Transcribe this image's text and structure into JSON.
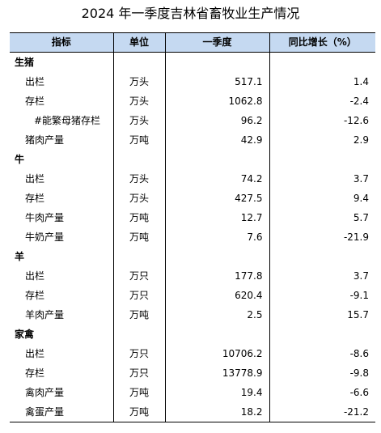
{
  "title": "2024 年一季度吉林省畜牧业生产情况",
  "headers": {
    "indicator": "指标",
    "unit": "单位",
    "q1": "一季度",
    "yoy": "同比增长（%）"
  },
  "rows": [
    {
      "type": "sec",
      "name": "生猪",
      "unit": "",
      "q1": "",
      "yoy": ""
    },
    {
      "type": "item",
      "name": "出栏",
      "unit": "万头",
      "q1": "517.1",
      "yoy": "1.4"
    },
    {
      "type": "item",
      "name": "存栏",
      "unit": "万头",
      "q1": "1062.8",
      "yoy": "-2.4"
    },
    {
      "type": "sub",
      "name": "#能繁母猪存栏",
      "unit": "万头",
      "q1": "96.2",
      "yoy": "-12.6"
    },
    {
      "type": "item",
      "name": "猪肉产量",
      "unit": "万吨",
      "q1": "42.9",
      "yoy": "2.9"
    },
    {
      "type": "sec",
      "name": "牛",
      "unit": "",
      "q1": "",
      "yoy": ""
    },
    {
      "type": "item",
      "name": "出栏",
      "unit": "万头",
      "q1": "74.2",
      "yoy": "3.7"
    },
    {
      "type": "item",
      "name": "存栏",
      "unit": "万头",
      "q1": "427.5",
      "yoy": "9.4"
    },
    {
      "type": "item",
      "name": "牛肉产量",
      "unit": "万吨",
      "q1": "12.7",
      "yoy": "5.7"
    },
    {
      "type": "item",
      "name": "牛奶产量",
      "unit": "万吨",
      "q1": "7.6",
      "yoy": "-21.9"
    },
    {
      "type": "sec",
      "name": "羊",
      "unit": "",
      "q1": "",
      "yoy": ""
    },
    {
      "type": "item",
      "name": "出栏",
      "unit": "万只",
      "q1": "177.8",
      "yoy": "3.7"
    },
    {
      "type": "item",
      "name": "存栏",
      "unit": "万只",
      "q1": "620.4",
      "yoy": "-9.1"
    },
    {
      "type": "item",
      "name": "羊肉产量",
      "unit": "万吨",
      "q1": "2.5",
      "yoy": "15.7"
    },
    {
      "type": "sec",
      "name": "家禽",
      "unit": "",
      "q1": "",
      "yoy": ""
    },
    {
      "type": "item",
      "name": "出栏",
      "unit": "万只",
      "q1": "10706.2",
      "yoy": "-8.6"
    },
    {
      "type": "item",
      "name": "存栏",
      "unit": "万只",
      "q1": "13778.9",
      "yoy": "-9.8"
    },
    {
      "type": "item",
      "name": "禽肉产量",
      "unit": "万吨",
      "q1": "19.4",
      "yoy": "-6.6"
    },
    {
      "type": "item",
      "name": "禽蛋产量",
      "unit": "万吨",
      "q1": "18.2",
      "yoy": "-21.2"
    }
  ],
  "colors": {
    "header_bg": "#c5d9f1",
    "rule": "#000000"
  }
}
